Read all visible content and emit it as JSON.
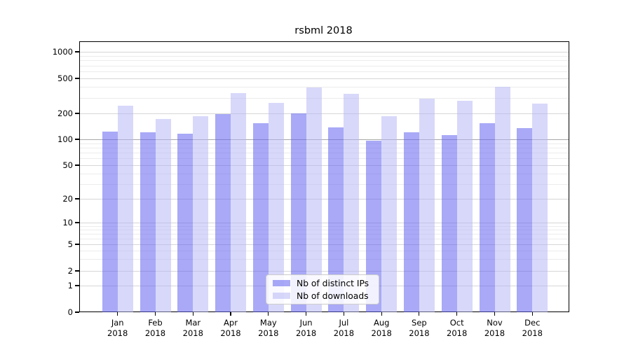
{
  "title": "rsbml 2018",
  "chart_data": {
    "type": "bar",
    "title": "rsbml 2018",
    "y_scale": "log above 1, linear segment 0-1 (symlog)",
    "y_ticks": [
      0,
      1,
      2,
      5,
      10,
      20,
      50,
      100,
      200,
      500,
      1000
    ],
    "y_minor_gridlines": [
      3,
      4,
      6,
      7,
      8,
      9,
      30,
      40,
      60,
      70,
      80,
      90,
      300,
      400,
      600,
      700,
      800,
      900
    ],
    "ylim": [
      0,
      1300
    ],
    "grid": true,
    "legend_position": "lower center",
    "categories": [
      "Jan 2018",
      "Feb 2018",
      "Mar 2018",
      "Apr 2018",
      "May 2018",
      "Jun 2018",
      "Jul 2018",
      "Aug 2018",
      "Sep 2018",
      "Oct 2018",
      "Nov 2018",
      "Dec 2018"
    ],
    "series": [
      {
        "name": "Nb of distinct IPs",
        "color": "#a9a9f4",
        "fill_rgba": "rgba(98,98,240,0.55)",
        "values": [
          122,
          120,
          117,
          195,
          154,
          200,
          137,
          97,
          121,
          113,
          154,
          135
        ]
      },
      {
        "name": "Nb of downloads",
        "color": "#d7d7f9",
        "fill_rgba": "rgba(180,180,245,0.52)",
        "values": [
          245,
          172,
          186,
          340,
          262,
          392,
          334,
          186,
          293,
          277,
          400,
          258
        ]
      }
    ]
  },
  "colors": {
    "background": "#ffffff",
    "axis": "#000000",
    "grid_minor": "#ececec",
    "grid_major": "#d6d6d6",
    "grid_hundred": "#a8a8a8",
    "legend_border": "#cccccc"
  }
}
